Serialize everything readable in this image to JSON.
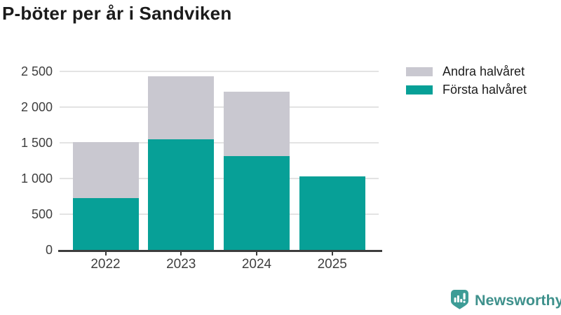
{
  "title": "P-böter per år i Sandviken",
  "chart_data": {
    "type": "bar",
    "stacked": true,
    "title": "P-böter per år i Sandviken",
    "categories": [
      "2022",
      "2023",
      "2024",
      "2025"
    ],
    "series": [
      {
        "name": "Första halvåret",
        "color": "#07a097",
        "values": [
          730,
          1550,
          1310,
          1030
        ]
      },
      {
        "name": "Andra halvåret",
        "color": "#c9c8d0",
        "values": [
          780,
          880,
          910,
          0
        ]
      }
    ],
    "totals": [
      1510,
      2430,
      2220,
      1030
    ],
    "xlabel": "",
    "ylabel": "",
    "ylim": [
      0,
      2500
    ],
    "ytick_values": [
      0,
      500,
      1000,
      1500,
      2000,
      2500
    ],
    "ytick_labels": [
      "0",
      "500",
      "1 000",
      "1 500",
      "2 000",
      "2 500"
    ],
    "grid": "horizontal",
    "legend_position": "top-right"
  },
  "legend": {
    "items": [
      {
        "label": "Andra halvåret",
        "color": "#c9c8d0"
      },
      {
        "label": "Första halvåret",
        "color": "#07a097"
      }
    ]
  },
  "branding": {
    "logo_text": "Newsworthy",
    "logo_text_color": "#3f918c",
    "logo_icon": "newsworthy-speech-bubble-bar-chart-icon",
    "logo_icon_color": "#3d9c96"
  },
  "colors": {
    "background": "#ffffff",
    "title_text": "#1b1b1b",
    "axis_text": "#3f3f3f",
    "gridline": "#e3e3e3",
    "axis_line": "#3d3d3d"
  }
}
